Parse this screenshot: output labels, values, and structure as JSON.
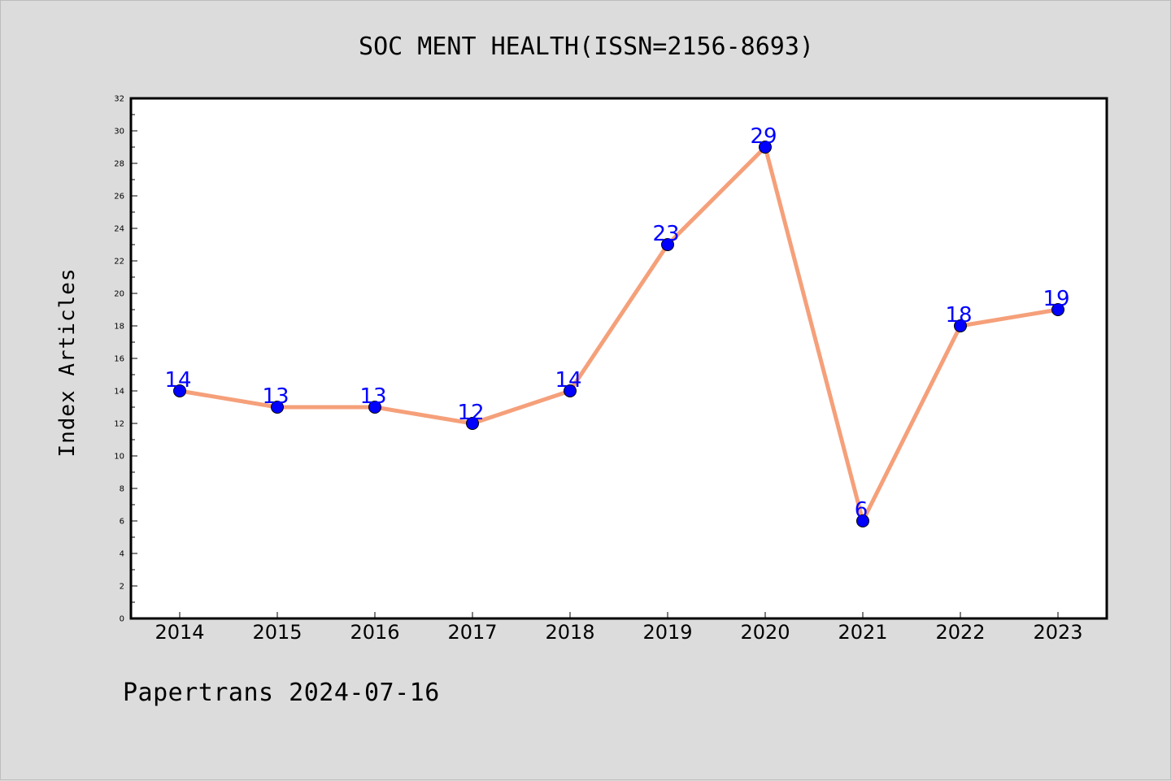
{
  "footer": "Papertrans 2024-07-16",
  "colors": {
    "background": "#dcdcdc",
    "plot_background": "#ffffff",
    "line": "#f5a07a",
    "marker": "#0000ff",
    "data_label": "#0000ff"
  },
  "chart_data": {
    "type": "line",
    "title": "SOC MENT HEALTH(ISSN=2156-8693)",
    "xlabel": "",
    "ylabel": "Index Articles",
    "categories": [
      "2014",
      "2015",
      "2016",
      "2017",
      "2018",
      "2019",
      "2020",
      "2021",
      "2022",
      "2023"
    ],
    "series": [
      {
        "values": [
          14,
          13,
          13,
          12,
          14,
          23,
          29,
          6,
          18,
          19
        ]
      }
    ],
    "ylim": [
      0,
      32
    ],
    "yticks": [
      0,
      2,
      4,
      6,
      8,
      10,
      12,
      14,
      16,
      18,
      20,
      22,
      24,
      26,
      28,
      30,
      32
    ],
    "grid": false,
    "legend": "none",
    "data_labels": true
  }
}
